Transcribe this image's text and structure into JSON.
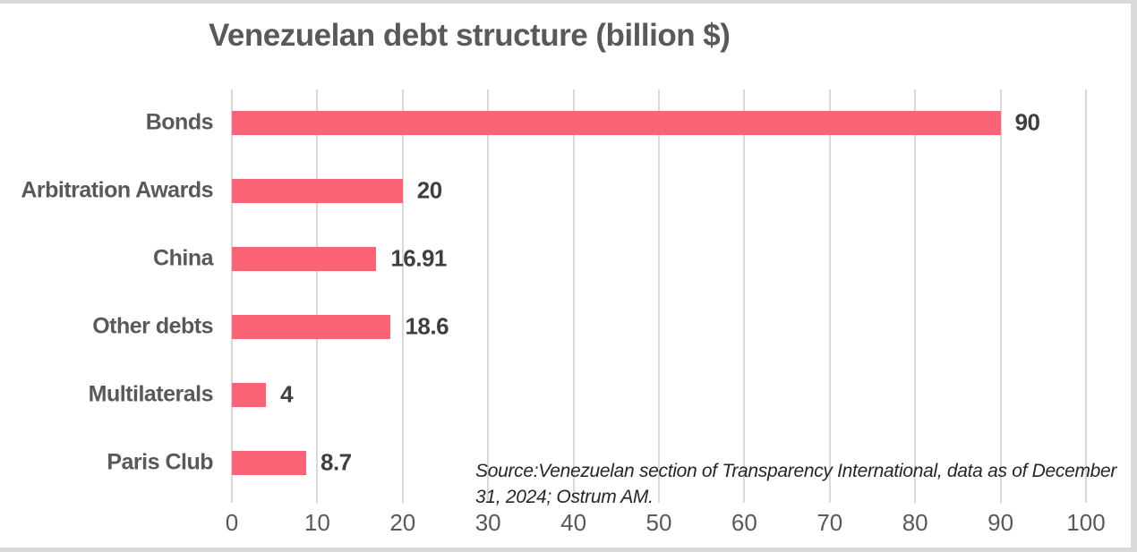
{
  "page": {
    "background": "#FFFFFF",
    "frame_strip_color": "#D9D9D9"
  },
  "chart_data": {
    "type": "bar",
    "orientation": "horizontal",
    "title": "Venezuelan debt structure (billion $)",
    "categories": [
      "Bonds",
      "Arbitration Awards",
      "China",
      "Other debts",
      "Multilaterals",
      "Paris Club"
    ],
    "values": [
      90,
      20,
      16.91,
      18.6,
      4,
      8.7
    ],
    "value_labels": [
      "90",
      "20",
      "16.91",
      "18.6",
      "4",
      "8.7"
    ],
    "xlim": [
      0,
      100
    ],
    "x_ticks": [
      0,
      10,
      20,
      30,
      40,
      50,
      60,
      70,
      80,
      90,
      100
    ],
    "grid": true,
    "legend": "none",
    "bar_color": "#FB6477",
    "gridline_color": "#D9D9D9",
    "title_color": "#595959",
    "category_label_color": "#595959",
    "value_label_color": "#3F3F3F",
    "tick_label_color": "#595959",
    "source_note": "Source:Venezuelan section of Transparency International, data as of December 31, 2024; Ostrum AM."
  }
}
